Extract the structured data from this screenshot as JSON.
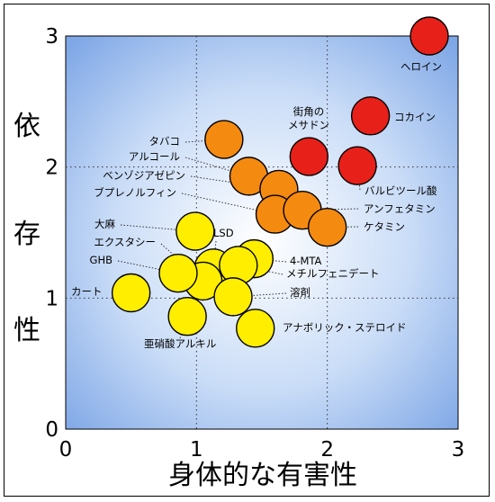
{
  "chart_data": {
    "type": "scatter",
    "xlabel": "身体的な有害性",
    "ylabel": [
      "依",
      "存",
      "性"
    ],
    "xlim": [
      0,
      3
    ],
    "ylim": [
      0,
      3
    ],
    "xticks": [
      "0",
      "1",
      "2",
      "3"
    ],
    "yticks": [
      "0",
      "1",
      "2",
      "3"
    ],
    "grid": true,
    "colors": {
      "red": "#e8201a",
      "orange": "#f58a10",
      "yellow": "#ffee00"
    },
    "points": [
      {
        "label": "ヘロイン",
        "x": 2.78,
        "y": 3.0,
        "color": "red"
      },
      {
        "label": "コカイン",
        "x": 2.33,
        "y": 2.39,
        "color": "red"
      },
      {
        "label": "街角の\nメサドン",
        "x": 1.86,
        "y": 2.08,
        "color": "red"
      },
      {
        "label": "バルビツール酸",
        "x": 2.23,
        "y": 2.01,
        "color": "red"
      },
      {
        "label": "タバコ",
        "x": 1.21,
        "y": 2.21,
        "color": "orange"
      },
      {
        "label": "アルコール",
        "x": 1.4,
        "y": 1.93,
        "color": "orange"
      },
      {
        "label": "ベンゾジアゼピン",
        "x": 1.63,
        "y": 1.83,
        "color": "orange"
      },
      {
        "label": "ブプレノルフィン",
        "x": 1.6,
        "y": 1.64,
        "color": "orange"
      },
      {
        "label": "アンフェタミン",
        "x": 1.81,
        "y": 1.67,
        "color": "orange"
      },
      {
        "label": "ケタミン",
        "x": 2.0,
        "y": 1.54,
        "color": "orange"
      },
      {
        "label": "大麻",
        "x": 0.99,
        "y": 1.51,
        "color": "yellow"
      },
      {
        "label": "LSD",
        "x": 1.13,
        "y": 1.23,
        "color": "yellow"
      },
      {
        "label": "エクスタシー",
        "x": 1.05,
        "y": 1.13,
        "color": "yellow"
      },
      {
        "label": "GHB",
        "x": 0.86,
        "y": 1.19,
        "color": "yellow"
      },
      {
        "label": "4-MTA",
        "x": 1.44,
        "y": 1.3,
        "color": "yellow"
      },
      {
        "label": "メチルフェニデート",
        "x": 1.32,
        "y": 1.25,
        "color": "yellow"
      },
      {
        "label": "溶剤",
        "x": 1.28,
        "y": 1.01,
        "color": "yellow"
      },
      {
        "label": "カート",
        "x": 0.5,
        "y": 1.04,
        "color": "yellow"
      },
      {
        "label": "亜硝酸アルキル",
        "x": 0.93,
        "y": 0.86,
        "color": "yellow"
      },
      {
        "label": "アナボリック・ステロイド",
        "x": 1.45,
        "y": 0.77,
        "color": "yellow"
      }
    ]
  }
}
